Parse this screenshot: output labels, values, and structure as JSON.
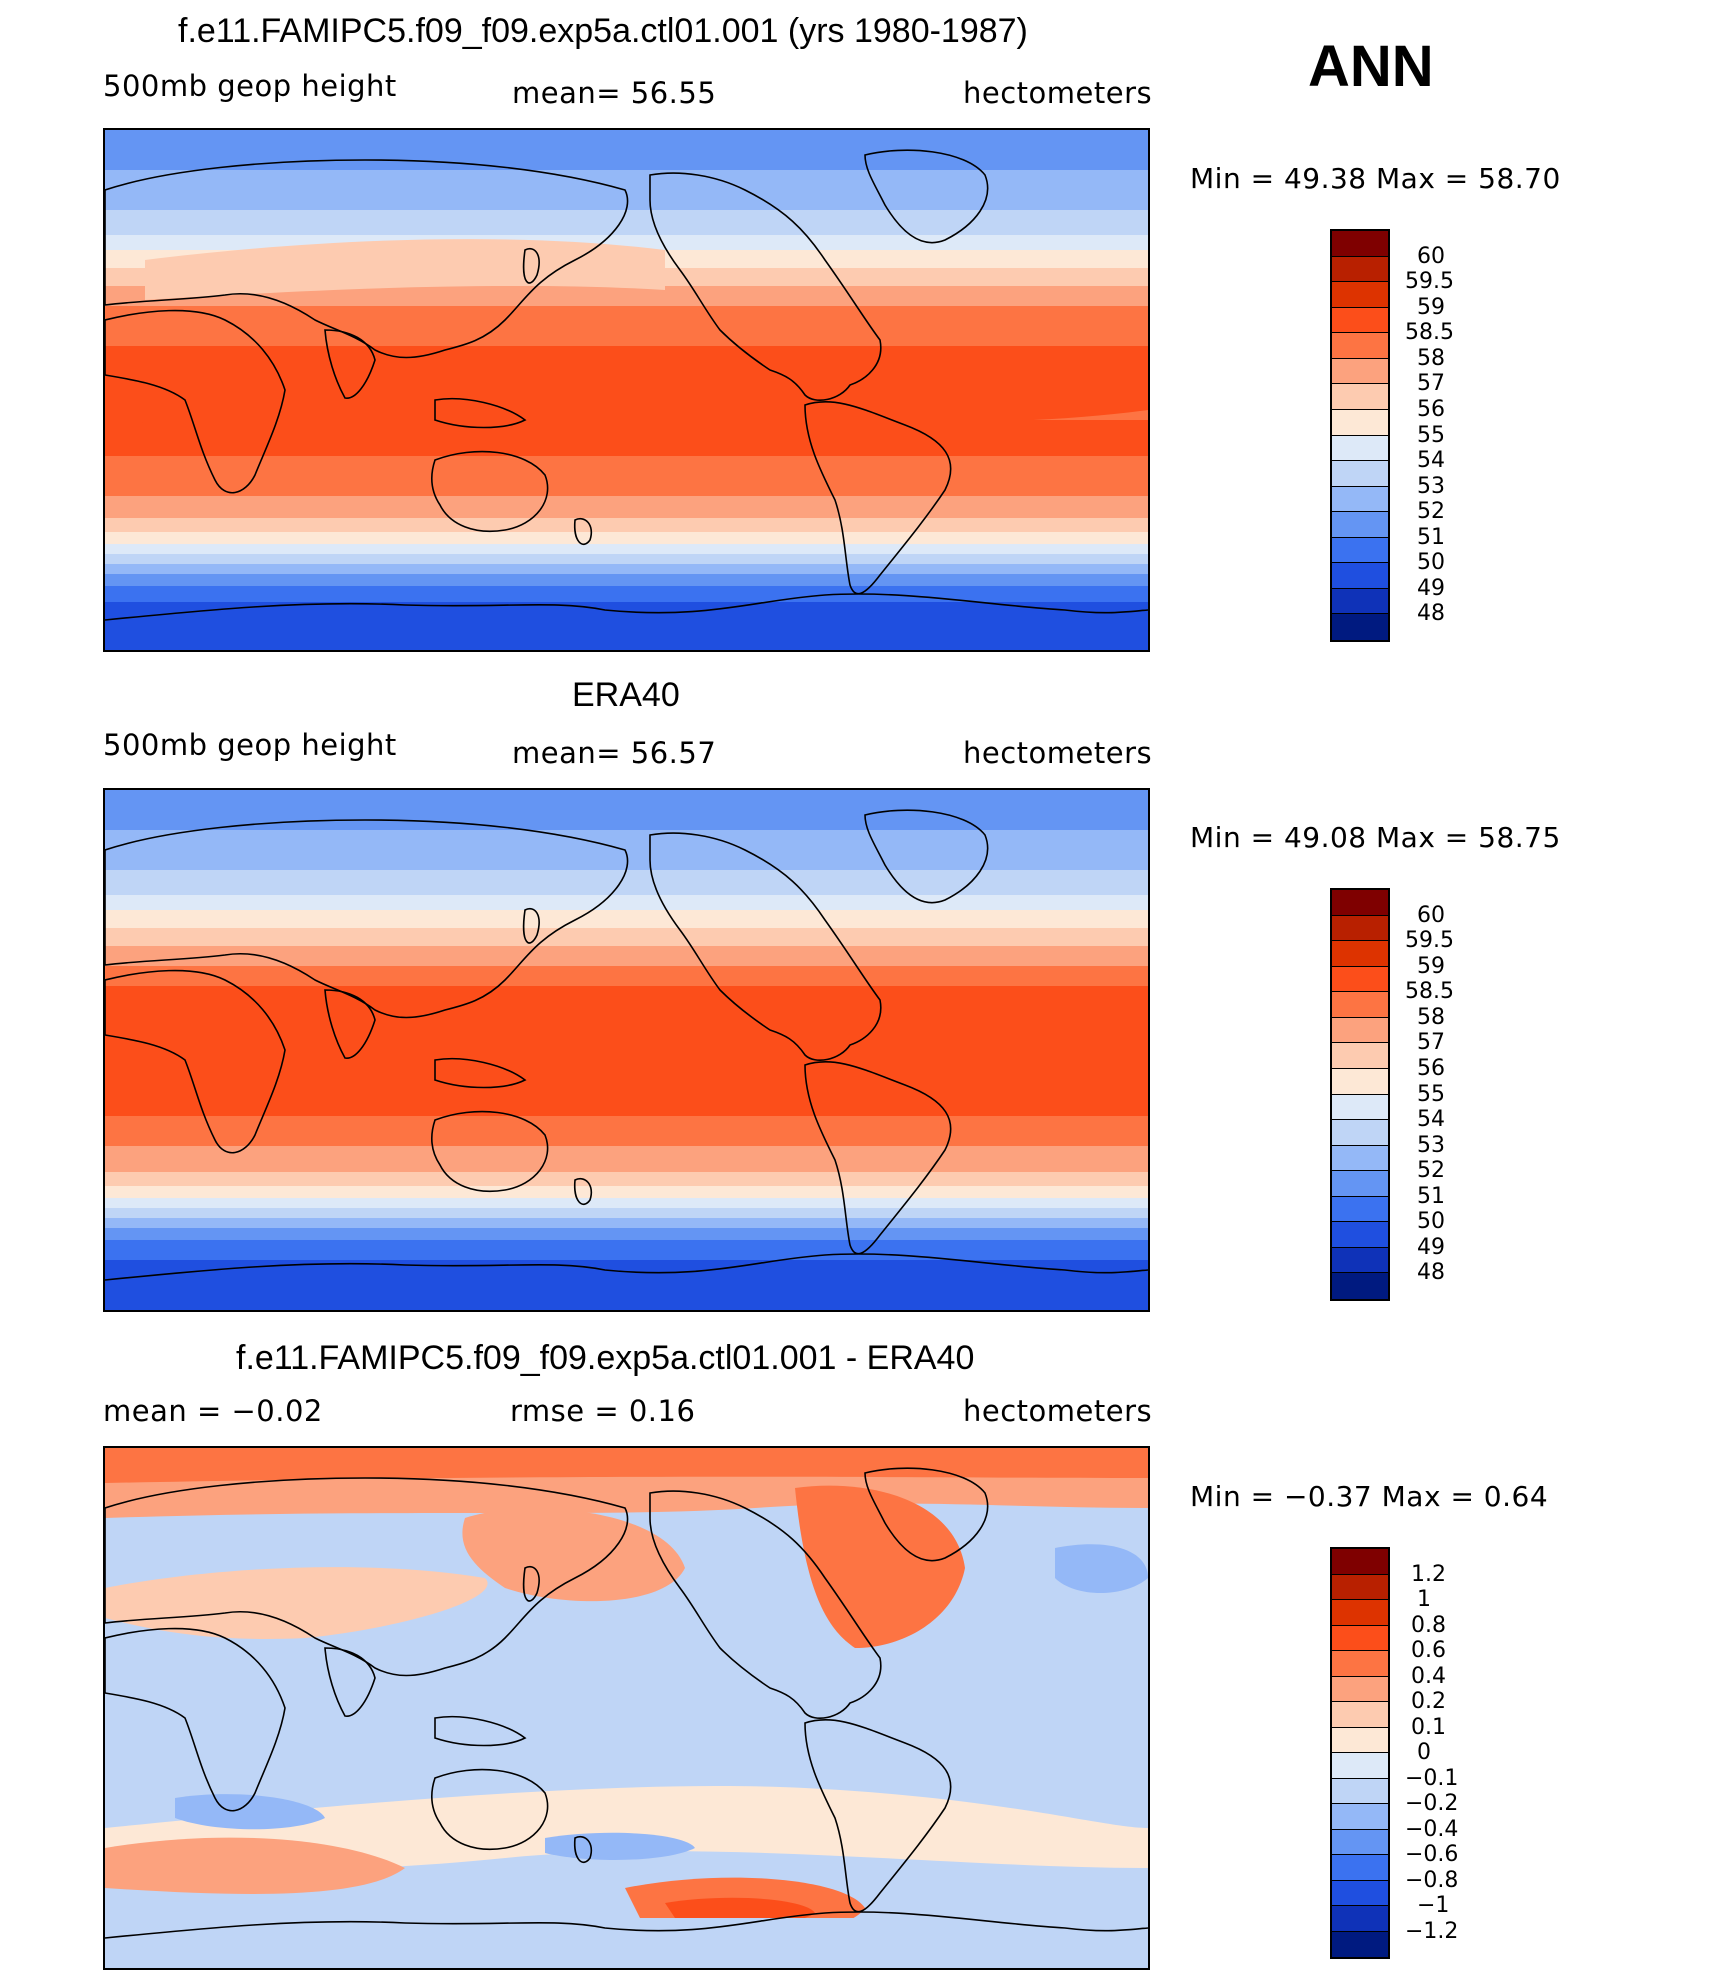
{
  "season": "ANN",
  "panels": [
    {
      "title": "f.e11.FAMIPC5.f09_f09.exp5a.ctl01.001 (yrs 1980-1987)",
      "left_label": "500mb  geop  height",
      "center_label": "mean=   56.55",
      "right_label": "hectometers",
      "minmax": "Min  =    49.38  Max  =    58.70",
      "colorbar_levels": [
        "60",
        "59.5",
        "59",
        "58.5",
        "58",
        "57",
        "56",
        "55",
        "54",
        "53",
        "52",
        "51",
        "50",
        "49",
        "48"
      ]
    },
    {
      "title": "ERA40",
      "left_label": "500mb  geop  height",
      "center_label": "mean=   56.57",
      "right_label": "hectometers",
      "minmax": "Min  =    49.08  Max  =    58.75",
      "colorbar_levels": [
        "60",
        "59.5",
        "59",
        "58.5",
        "58",
        "57",
        "56",
        "55",
        "54",
        "53",
        "52",
        "51",
        "50",
        "49",
        "48"
      ]
    },
    {
      "title": "f.e11.FAMIPC5.f09_f09.exp5a.ctl01.001 - ERA40",
      "left_label": "mean  =    −0.02",
      "center_label": "rmse  =     0.16",
      "right_label": "hectometers",
      "minmax": "Min  =    −0.37  Max  =      0.64",
      "colorbar_levels": [
        "1.2",
        "1",
        "0.8",
        "0.6",
        "0.4",
        "0.2",
        "0.1",
        "0",
        "−0.1",
        "−0.2",
        "−0.4",
        "−0.6",
        "−0.8",
        "−1",
        "−1.2"
      ]
    }
  ],
  "colors": {
    "palette": [
      "#7f0000",
      "#b82000",
      "#dd3300",
      "#fc4e1a",
      "#fd7443",
      "#fca27e",
      "#fdcbb0",
      "#fde8d6",
      "#dde9f8",
      "#bfd5f6",
      "#94b8f7",
      "#6495f3",
      "#3b72f0",
      "#1f4fe0",
      "#0f32b8",
      "#001a80"
    ],
    "coast": "#000000"
  }
}
